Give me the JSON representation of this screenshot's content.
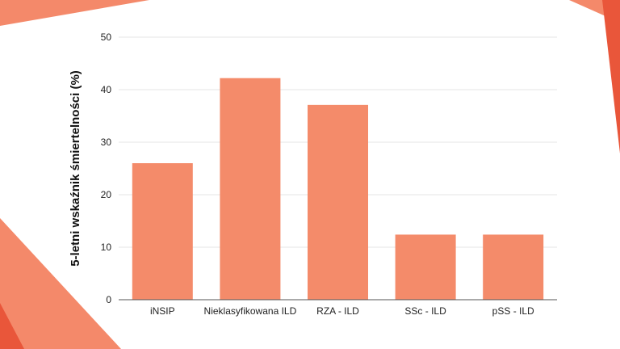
{
  "chart_data": {
    "type": "bar",
    "categories": [
      "iNSIP",
      "Nieklasyfikowana ILD",
      "RZA - ILD",
      "SSc - ILD",
      "pSS - ILD"
    ],
    "values": [
      26,
      42.2,
      37.1,
      12.4,
      12.4
    ],
    "title": "",
    "xlabel": "",
    "ylabel": "5-letni wskaźnik śmiertelności (%)",
    "ylim": [
      0,
      50
    ],
    "yticks": [
      0,
      10,
      20,
      30,
      40,
      50
    ],
    "grid": true,
    "legend": "none",
    "bar_color": "#F48B6A"
  },
  "theme": {
    "accent_light": "#F4896A",
    "accent_dark": "#E9563A"
  }
}
